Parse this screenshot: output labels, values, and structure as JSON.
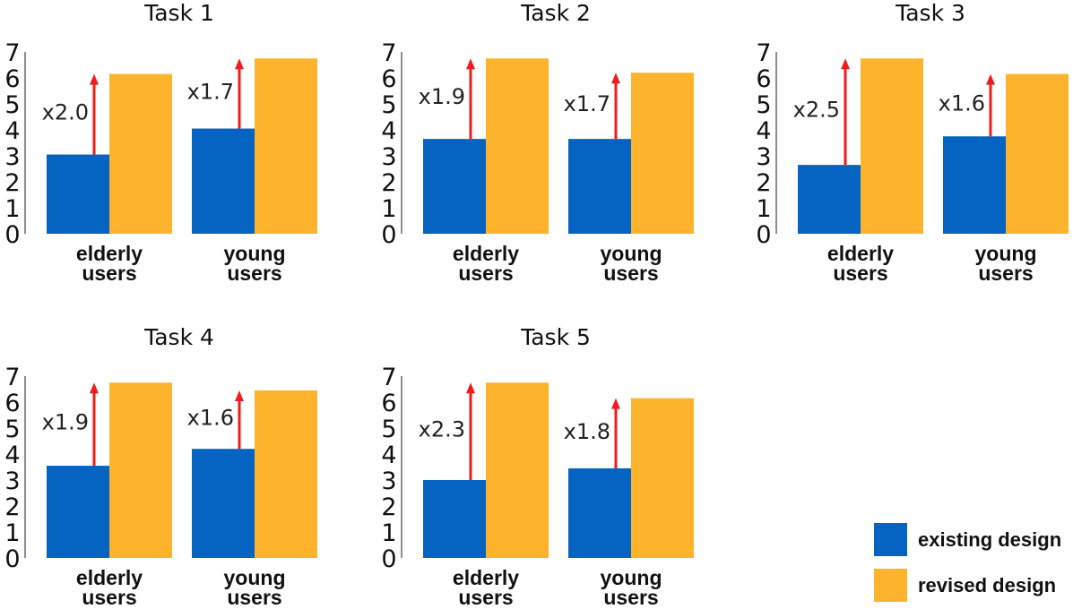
{
  "chart_data": {
    "type": "bar",
    "ylim": [
      0,
      7
    ],
    "yticks": [
      "0",
      "1",
      "2",
      "3",
      "4",
      "5",
      "6",
      "7"
    ],
    "categories": [
      {
        "line1": "elderly",
        "line2": "users"
      },
      {
        "line1": "young",
        "line2": "users"
      }
    ],
    "series": [
      {
        "name": "existing design",
        "color": "#0563c1"
      },
      {
        "name": "revised design",
        "color": "#fdb32b"
      }
    ],
    "panels": [
      {
        "title": "Task 1",
        "existing": [
          3.05,
          4.05
        ],
        "revised": [
          6.15,
          6.75
        ],
        "multipliers": [
          "x2.0",
          "x1.7"
        ]
      },
      {
        "title": "Task 2",
        "existing": [
          3.65,
          3.65
        ],
        "revised": [
          6.75,
          6.2
        ],
        "multipliers": [
          "x1.9",
          "x1.7"
        ]
      },
      {
        "title": "Task 3",
        "existing": [
          2.65,
          3.75
        ],
        "revised": [
          6.75,
          6.15
        ],
        "multipliers": [
          "x2.5",
          "x1.6"
        ]
      },
      {
        "title": "Task 4",
        "existing": [
          3.55,
          4.2
        ],
        "revised": [
          6.75,
          6.45
        ],
        "multipliers": [
          "x1.9",
          "x1.6"
        ]
      },
      {
        "title": "Task 5",
        "existing": [
          3.0,
          3.45
        ],
        "revised": [
          6.75,
          6.15
        ],
        "multipliers": [
          "x2.3",
          "x1.8"
        ]
      }
    ],
    "arrow_color": "#ee1c1c",
    "legend": {
      "position": "bottom-right"
    }
  }
}
